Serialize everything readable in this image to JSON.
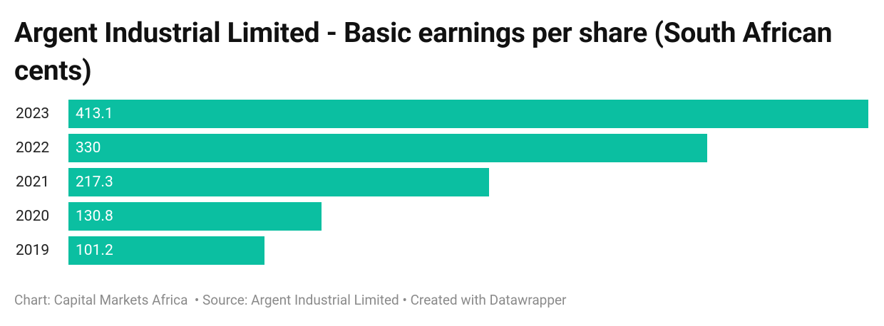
{
  "chart_data": {
    "type": "bar",
    "orientation": "horizontal",
    "title": "Argent Industrial Limited - Basic earnings per share (South African cents)",
    "categories": [
      "2023",
      "2022",
      "2021",
      "2020",
      "2019"
    ],
    "values": [
      413.1,
      330,
      217.3,
      130.8,
      101.2
    ],
    "color": "#0bbfa1",
    "footer": "Chart: Capital Markets Africa  • Source: Argent Industrial Limited • Created with Datawrapper"
  }
}
